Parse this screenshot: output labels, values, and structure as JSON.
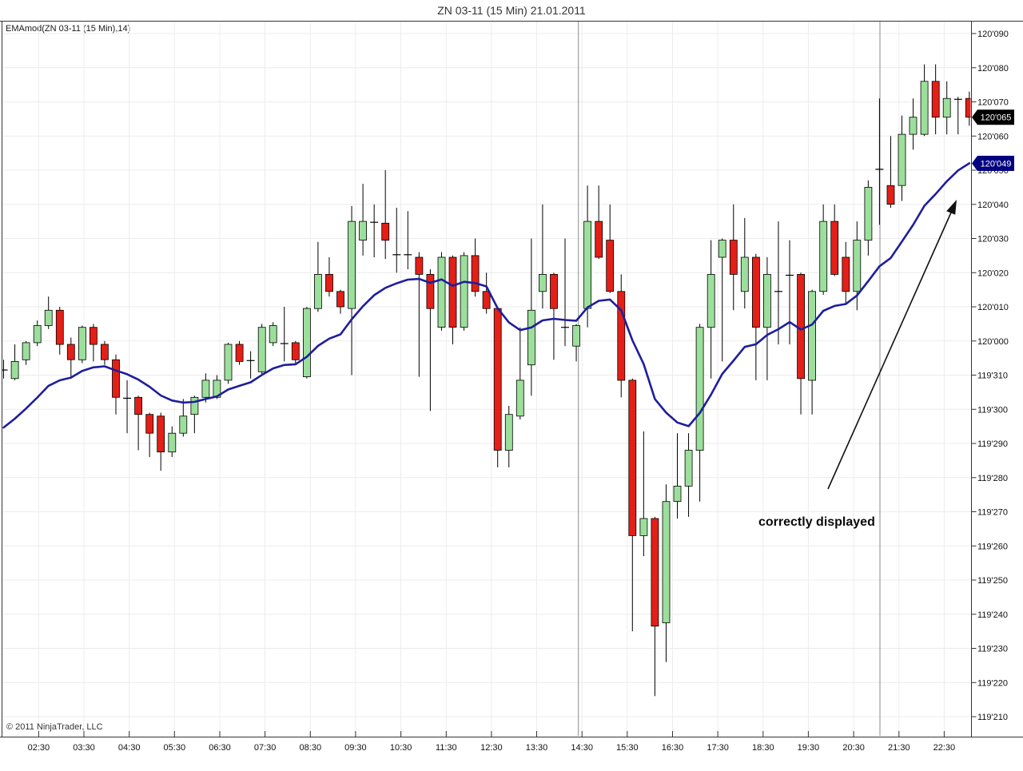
{
  "window": {
    "title": "ZN 03-11 (15 Min)  21.01.2011"
  },
  "chart": {
    "indicator_label": "EMAmod(ZN 03-11 (15 Min),14)",
    "copyright": "© 2011 NinjaTrader, LLC",
    "annotation": {
      "text": "correctly displayed"
    }
  },
  "chart_data": {
    "type": "candlestick+line",
    "instrument": "ZN 03-11",
    "bar_period": "15 Min",
    "date": "21.01.2011",
    "x_tick_labels": [
      "02:30",
      "03:30",
      "04:30",
      "05:30",
      "06:30",
      "07:30",
      "08:30",
      "09:30",
      "10:30",
      "11:30",
      "12:30",
      "13:30",
      "14:30",
      "15:30",
      "16:30",
      "17:30",
      "18:30",
      "19:30",
      "20:30",
      "21:30",
      "22:30"
    ],
    "y_tick_labels": [
      "120'090",
      "120'080",
      "120'070",
      "120'060",
      "120'050",
      "120'040",
      "120'030",
      "120'020",
      "120'010",
      "120'000",
      "119'310",
      "119'300",
      "119'290",
      "119'280",
      "119'270",
      "119'260",
      "119'250",
      "119'240",
      "119'230",
      "119'220",
      "119'210"
    ],
    "price_encoding": "prices stored as 32nds above 119: 32.0=120'000, 31.0=119'310, 21.0=119'210, 41.0=120'090, 38.5=120'065",
    "y_axis_top_value": 41,
    "y_axis_bottom_value": 21,
    "start_time": "01:45",
    "bar_interval_minutes": 15,
    "bars": [
      [
        31.1,
        31.45,
        30.9,
        31.2
      ],
      [
        30.9,
        31.9,
        30.85,
        31.4
      ],
      [
        31.45,
        32.0,
        31.3,
        31.95
      ],
      [
        31.95,
        32.6,
        31.85,
        32.45
      ],
      [
        32.45,
        33.3,
        32.35,
        32.9
      ],
      [
        32.9,
        33.0,
        31.6,
        31.9
      ],
      [
        31.9,
        32.1,
        30.9,
        31.45
      ],
      [
        31.45,
        32.45,
        31.35,
        32.4
      ],
      [
        32.4,
        32.5,
        31.4,
        31.9
      ],
      [
        31.9,
        32.0,
        31.3,
        31.45
      ],
      [
        31.45,
        31.6,
        29.85,
        30.35
      ],
      [
        30.35,
        30.85,
        29.3,
        30.3
      ],
      [
        30.35,
        30.4,
        28.8,
        29.85
      ],
      [
        29.85,
        29.9,
        28.6,
        29.3
      ],
      [
        29.8,
        29.9,
        28.2,
        28.75
      ],
      [
        28.75,
        29.5,
        28.6,
        29.3
      ],
      [
        29.3,
        30.3,
        29.2,
        29.8
      ],
      [
        29.85,
        30.4,
        29.3,
        30.35
      ],
      [
        30.35,
        31.05,
        30.2,
        30.85
      ],
      [
        30.35,
        31.0,
        30.3,
        30.85
      ],
      [
        30.85,
        31.95,
        30.75,
        31.9
      ],
      [
        31.9,
        32.0,
        31.3,
        31.4
      ],
      [
        31.4,
        31.7,
        30.9,
        31.45
      ],
      [
        31.1,
        32.5,
        31.0,
        32.4
      ],
      [
        31.95,
        32.55,
        31.85,
        32.45
      ],
      [
        31.9,
        33.0,
        31.4,
        31.95
      ],
      [
        31.95,
        32.0,
        31.3,
        31.45
      ],
      [
        30.95,
        33.0,
        30.9,
        32.95
      ],
      [
        32.95,
        34.9,
        32.85,
        33.95
      ],
      [
        33.95,
        34.45,
        33.3,
        33.45
      ],
      [
        33.45,
        33.5,
        32.8,
        33.0
      ],
      [
        32.95,
        35.95,
        31.0,
        35.5
      ],
      [
        34.95,
        36.6,
        34.5,
        35.5
      ],
      [
        35.5,
        36.0,
        34.45,
        35.45
      ],
      [
        35.45,
        37.0,
        34.4,
        34.95
      ],
      [
        34.5,
        35.9,
        34.0,
        34.55
      ],
      [
        34.55,
        35.8,
        34.1,
        34.5
      ],
      [
        34.45,
        34.6,
        30.95,
        33.95
      ],
      [
        33.95,
        34.1,
        29.95,
        32.95
      ],
      [
        32.4,
        34.6,
        32.3,
        34.45
      ],
      [
        34.45,
        34.5,
        31.9,
        32.4
      ],
      [
        32.4,
        34.6,
        32.3,
        34.5
      ],
      [
        34.5,
        35.0,
        33.3,
        33.45
      ],
      [
        33.45,
        34.0,
        32.8,
        32.95
      ],
      [
        32.95,
        33.0,
        28.3,
        28.8
      ],
      [
        28.8,
        30.1,
        28.3,
        29.85
      ],
      [
        29.8,
        32.4,
        29.7,
        30.85
      ],
      [
        31.3,
        35.0,
        30.4,
        32.9
      ],
      [
        33.45,
        36.0,
        32.95,
        33.95
      ],
      [
        33.95,
        34.0,
        31.45,
        32.95
      ],
      [
        32.4,
        35.0,
        31.85,
        32.4
      ],
      [
        31.85,
        32.5,
        31.4,
        32.45
      ],
      [
        32.95,
        36.55,
        32.4,
        35.5
      ],
      [
        35.5,
        36.55,
        34.4,
        34.45
      ],
      [
        34.95,
        36.0,
        33.4,
        33.45
      ],
      [
        33.45,
        33.95,
        30.35,
        30.85
      ],
      [
        30.85,
        30.9,
        23.5,
        26.3
      ],
      [
        26.3,
        29.35,
        25.7,
        26.8
      ],
      [
        26.8,
        26.85,
        21.6,
        23.65
      ],
      [
        23.75,
        27.8,
        22.6,
        27.3
      ],
      [
        27.3,
        29.3,
        26.8,
        27.75
      ],
      [
        27.75,
        29.3,
        26.85,
        28.8
      ],
      [
        28.8,
        32.5,
        27.3,
        32.4
      ],
      [
        32.4,
        34.95,
        30.9,
        33.95
      ],
      [
        34.45,
        35.0,
        31.4,
        34.95
      ],
      [
        34.95,
        36.0,
        32.9,
        33.95
      ],
      [
        33.45,
        35.6,
        32.95,
        34.45
      ],
      [
        34.45,
        34.55,
        30.85,
        32.4
      ],
      [
        32.4,
        34.45,
        30.85,
        33.95
      ],
      [
        33.45,
        35.5,
        31.9,
        33.45
      ],
      [
        33.95,
        34.95,
        31.9,
        33.9
      ],
      [
        33.95,
        34.0,
        29.85,
        30.9
      ],
      [
        30.85,
        33.5,
        29.85,
        33.45
      ],
      [
        33.45,
        36.0,
        33.35,
        35.5
      ],
      [
        35.5,
        36.0,
        33.9,
        33.95
      ],
      [
        34.45,
        34.9,
        33.1,
        33.45
      ],
      [
        33.45,
        35.5,
        32.9,
        34.95
      ],
      [
        34.95,
        36.7,
        34.5,
        36.5
      ],
      [
        37.05,
        39.1,
        35.4,
        37.0
      ],
      [
        36.55,
        38.0,
        35.9,
        36.0
      ],
      [
        36.55,
        38.6,
        36.1,
        38.05
      ],
      [
        38.05,
        39.1,
        37.6,
        38.55
      ],
      [
        38.05,
        40.1,
        38.0,
        39.6
      ],
      [
        39.6,
        40.1,
        38.05,
        38.55
      ],
      [
        38.55,
        39.6,
        38.05,
        39.1
      ],
      [
        39.1,
        39.15,
        38.05,
        39.05
      ],
      [
        39.1,
        39.3,
        38.3,
        38.55
      ]
    ],
    "ema": {
      "label": "EMAmod 14",
      "period": 14,
      "seed": 29.2,
      "color": "#1e1e9c",
      "value_tag_label": "120'049",
      "value_tag_bg": "#000080"
    },
    "last_price": {
      "label": "120'065",
      "value": 38.55,
      "tag_bg": "#000000"
    },
    "session_breaks_hours_after_0230": [
      11.92,
      18.58
    ],
    "colors": {
      "up": "#9cdf9c",
      "down": "#e41f17",
      "wick": "#000000",
      "grid": "#ececec",
      "session_line": "#8a8a8a",
      "axis": "#333333"
    },
    "legend_position": "none",
    "grid": true
  }
}
